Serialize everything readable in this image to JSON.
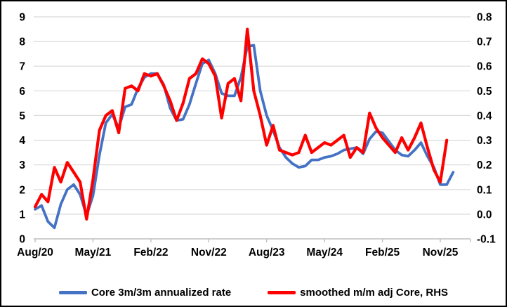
{
  "chart_data": {
    "type": "line",
    "title": "",
    "xlabel": "",
    "ylabel_left": "",
    "ylabel_right": "",
    "grid": true,
    "legend_position": "bottom",
    "x_tick_labels": [
      "Aug/20",
      "May/21",
      "Feb/22",
      "Nov/22",
      "Aug/23",
      "May/24",
      "Feb/25",
      "Nov/25"
    ],
    "x_tick_indices": [
      0,
      9,
      18,
      27,
      36,
      45,
      54,
      63
    ],
    "left_axis": {
      "min": 0,
      "max": 9,
      "step": 1,
      "tick_labels": [
        "0",
        "1",
        "2",
        "3",
        "4",
        "5",
        "6",
        "7",
        "8",
        "9"
      ]
    },
    "right_axis": {
      "min": -0.1,
      "max": 0.8,
      "step": 0.1,
      "tick_labels": [
        "-0.1",
        "0.0",
        "0.1",
        "0.2",
        "0.3",
        "0.4",
        "0.5",
        "0.6",
        "0.7",
        "0.8"
      ]
    },
    "x": [
      "Aug/20",
      "Sep/20",
      "Oct/20",
      "Nov/20",
      "Dec/20",
      "Jan/21",
      "Feb/21",
      "Mar/21",
      "Apr/21",
      "May/21",
      "Jun/21",
      "Jul/21",
      "Aug/21",
      "Sep/21",
      "Oct/21",
      "Nov/21",
      "Dec/21",
      "Jan/22",
      "Feb/22",
      "Mar/22",
      "Apr/22",
      "May/22",
      "Jun/22",
      "Jul/22",
      "Aug/22",
      "Sep/22",
      "Oct/22",
      "Nov/22",
      "Dec/22",
      "Jan/23",
      "Feb/23",
      "Mar/23",
      "Apr/23",
      "May/23",
      "Jun/23",
      "Jul/23",
      "Aug/23",
      "Sep/23",
      "Oct/23",
      "Nov/23",
      "Dec/23",
      "Jan/24",
      "Feb/24",
      "Mar/24",
      "Apr/24",
      "May/24",
      "Jun/24",
      "Jul/24",
      "Aug/24",
      "Sep/24",
      "Oct/24",
      "Nov/24",
      "Dec/24",
      "Jan/25",
      "Feb/25",
      "Mar/25",
      "Apr/25",
      "May/25",
      "Jun/25",
      "Jul/25",
      "Aug/25",
      "Sep/25",
      "Oct/25",
      "Nov/25",
      "Dec/25",
      "Jan/26"
    ],
    "series": [
      {
        "name": "Core 3m/3m annualized rate",
        "axis": "left",
        "color": "#4472C4",
        "values": [
          1.2,
          1.35,
          0.7,
          0.45,
          1.4,
          2.0,
          2.2,
          1.8,
          0.95,
          1.75,
          3.4,
          4.7,
          5.05,
          4.5,
          5.35,
          5.45,
          6.1,
          6.55,
          6.7,
          6.7,
          6.25,
          5.3,
          4.8,
          4.85,
          5.45,
          6.3,
          7.1,
          7.25,
          6.7,
          5.9,
          5.8,
          5.8,
          6.55,
          7.8,
          7.85,
          6.0,
          5.0,
          4.4,
          3.7,
          3.3,
          3.05,
          2.9,
          2.95,
          3.2,
          3.2,
          3.3,
          3.35,
          3.45,
          3.6,
          3.65,
          3.7,
          3.45,
          4.05,
          4.35,
          4.3,
          3.95,
          3.6,
          3.4,
          3.35,
          3.6,
          3.9,
          3.35,
          2.9,
          2.2,
          2.2,
          2.7
        ]
      },
      {
        "name": "smoothed m/m adj Core, RHS",
        "axis": "right",
        "color": "#FF0000",
        "values": [
          0.03,
          0.08,
          0.05,
          0.19,
          0.13,
          0.21,
          0.17,
          0.13,
          -0.02,
          0.14,
          0.34,
          0.4,
          0.42,
          0.33,
          0.51,
          0.52,
          0.5,
          0.57,
          0.56,
          0.57,
          0.52,
          0.46,
          0.38,
          0.45,
          0.55,
          0.57,
          0.63,
          0.61,
          0.56,
          0.39,
          0.53,
          0.55,
          0.46,
          0.75,
          0.5,
          0.4,
          0.28,
          0.36,
          0.26,
          0.25,
          0.24,
          0.25,
          0.32,
          0.25,
          0.27,
          0.29,
          0.28,
          0.3,
          0.32,
          0.23,
          0.27,
          0.25,
          0.41,
          0.35,
          0.31,
          0.28,
          0.25,
          0.31,
          0.26,
          0.31,
          0.37,
          0.27,
          0.18,
          0.13,
          0.3,
          null
        ]
      }
    ]
  },
  "colors": {
    "blue_series": "#4472C4",
    "red_series": "#FF0000",
    "gridline": "#D9D9D9",
    "axis_line": "#BFBFBF",
    "text": "#000000",
    "background": "#FFFFFF",
    "border": "#000000"
  }
}
